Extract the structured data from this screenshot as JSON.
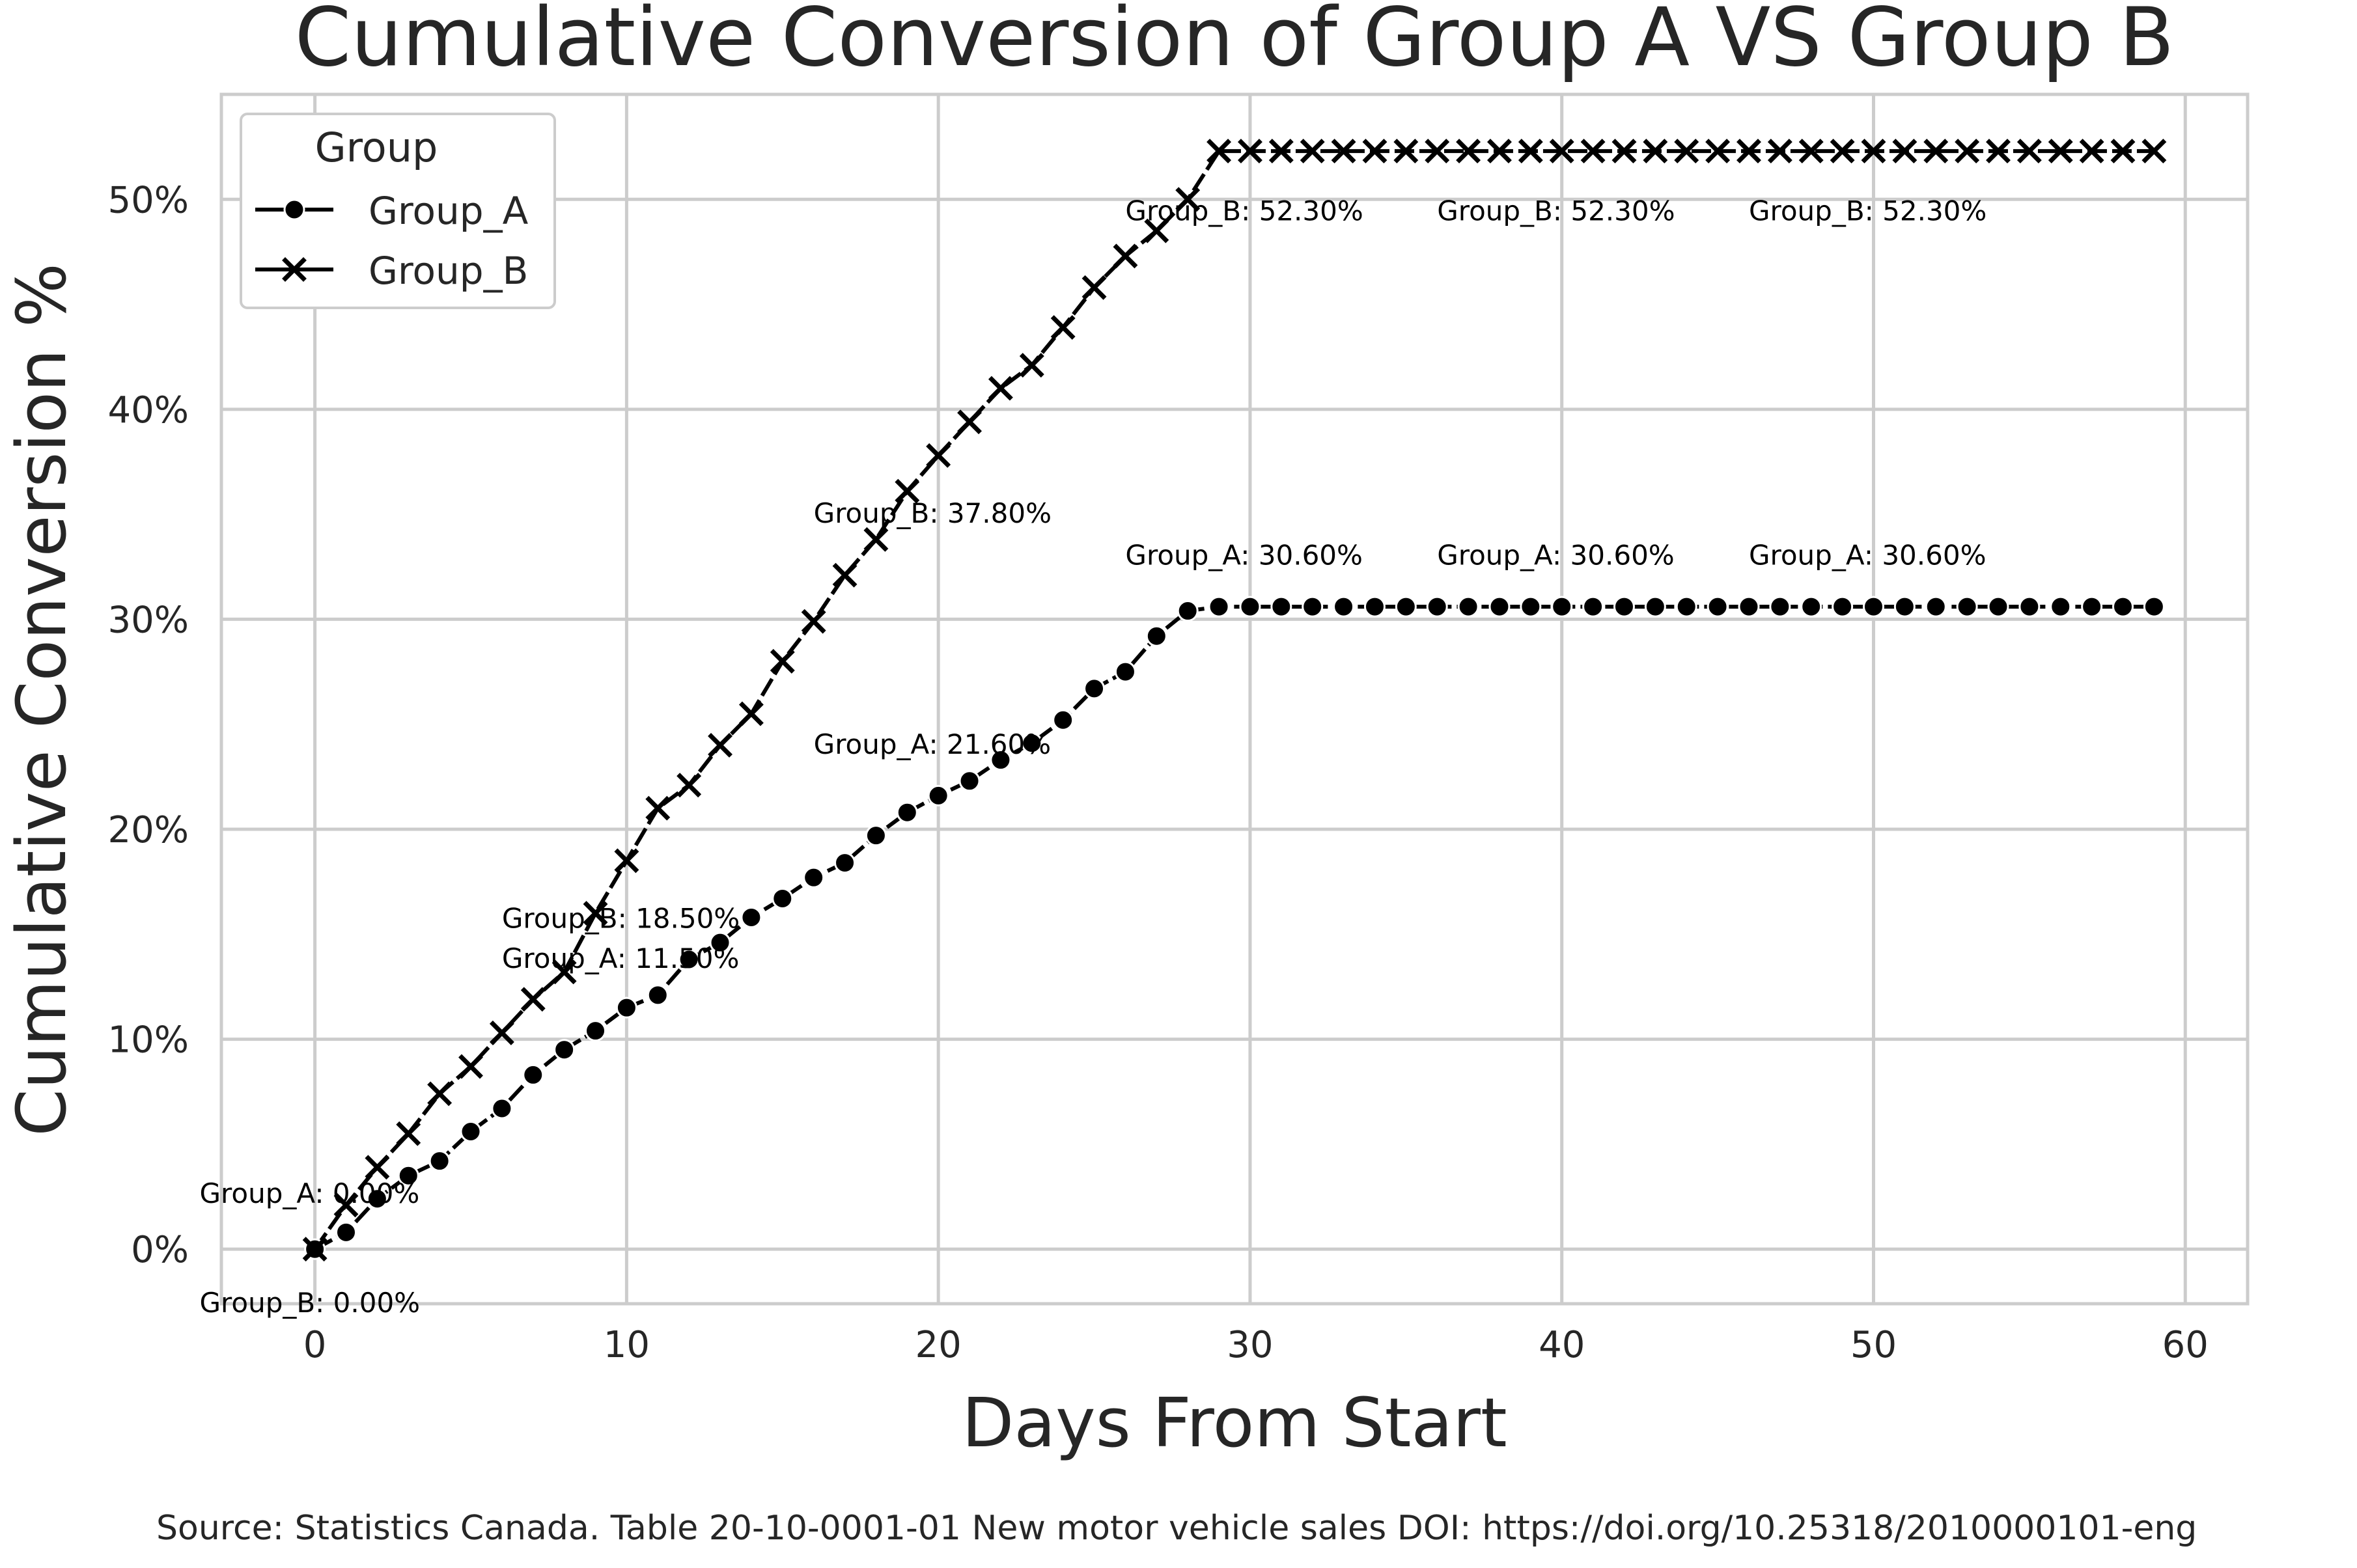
{
  "chart_data": {
    "type": "line",
    "title": "Cumulative Conversion of Group A VS Group B",
    "xlabel": "Days From Start",
    "ylabel": "Cumulative Conversion %",
    "xlim": [
      -3,
      62
    ],
    "ylim": [
      -2.6,
      55
    ],
    "xticks": [
      0,
      10,
      20,
      30,
      40,
      50,
      60
    ],
    "xtick_labels": [
      "0",
      "10",
      "20",
      "30",
      "40",
      "50",
      "60"
    ],
    "yticks": [
      0,
      10,
      20,
      30,
      40,
      50
    ],
    "ytick_labels": [
      "0%",
      "10%",
      "20%",
      "30%",
      "40%",
      "50%"
    ],
    "grid": true,
    "legend": {
      "title": "Group",
      "placement": "top-left"
    },
    "x": [
      0,
      1,
      2,
      3,
      4,
      5,
      6,
      7,
      8,
      9,
      10,
      11,
      12,
      13,
      14,
      15,
      16,
      17,
      18,
      19,
      20,
      21,
      22,
      23,
      24,
      25,
      26,
      27,
      28,
      29,
      30,
      31,
      32,
      33,
      34,
      35,
      36,
      37,
      38,
      39,
      40,
      41,
      42,
      43,
      44,
      45,
      46,
      47,
      48,
      49,
      50,
      51,
      52,
      53,
      54,
      55,
      56,
      57,
      58,
      59
    ],
    "series": [
      {
        "name": "Group_A",
        "marker": "circle",
        "color": "#000000",
        "values": [
          0.0,
          0.8,
          2.4,
          3.5,
          4.2,
          5.6,
          6.7,
          8.3,
          9.5,
          10.4,
          11.5,
          12.1,
          13.8,
          14.6,
          15.8,
          16.7,
          17.7,
          18.4,
          19.7,
          20.8,
          21.6,
          22.3,
          23.3,
          24.1,
          25.2,
          26.7,
          27.5,
          29.2,
          30.4,
          30.6,
          30.6,
          30.6,
          30.6,
          30.6,
          30.6,
          30.6,
          30.6,
          30.6,
          30.6,
          30.6,
          30.6,
          30.6,
          30.6,
          30.6,
          30.6,
          30.6,
          30.6,
          30.6,
          30.6,
          30.6,
          30.6,
          30.6,
          30.6,
          30.6,
          30.6,
          30.6,
          30.6,
          30.6,
          30.6,
          30.6
        ]
      },
      {
        "name": "Group_B",
        "marker": "x",
        "color": "#000000",
        "values": [
          0.0,
          2.1,
          3.9,
          5.5,
          7.4,
          8.7,
          10.3,
          11.9,
          13.2,
          16.0,
          18.5,
          21.0,
          22.1,
          24.0,
          25.5,
          28.0,
          29.9,
          32.1,
          33.8,
          36.1,
          37.8,
          39.4,
          41.0,
          42.1,
          43.9,
          45.8,
          47.3,
          48.5,
          50.0,
          52.3,
          52.3,
          52.3,
          52.3,
          52.3,
          52.3,
          52.3,
          52.3,
          52.3,
          52.3,
          52.3,
          52.3,
          52.3,
          52.3,
          52.3,
          52.3,
          52.3,
          52.3,
          52.3,
          52.3,
          52.3,
          52.3,
          52.3,
          52.3,
          52.3,
          52.3,
          52.3,
          52.3,
          52.3,
          52.3,
          52.3
        ]
      }
    ],
    "annotations": [
      {
        "x": -3.7,
        "y": 2.2,
        "text": "Group_A: 0.00%"
      },
      {
        "x": -3.7,
        "y": -3.0,
        "text": "Group_B: 0.00%"
      },
      {
        "x": 6,
        "y": 13.4,
        "text": "Group_A: 11.50%"
      },
      {
        "x": 6,
        "y": 15.3,
        "text": "Group_B: 18.50%"
      },
      {
        "x": 16,
        "y": 23.6,
        "text": "Group_A: 21.60%"
      },
      {
        "x": 16,
        "y": 34.6,
        "text": "Group_B: 37.80%"
      },
      {
        "x": 26,
        "y": 32.6,
        "text": "Group_A: 30.60%"
      },
      {
        "x": 36,
        "y": 32.6,
        "text": "Group_A: 30.60%"
      },
      {
        "x": 46,
        "y": 32.6,
        "text": "Group_A: 30.60%"
      },
      {
        "x": 26,
        "y": 49.0,
        "text": "Group_B: 52.30%"
      },
      {
        "x": 36,
        "y": 49.0,
        "text": "Group_B: 52.30%"
      },
      {
        "x": 46,
        "y": 49.0,
        "text": "Group_B: 52.30%"
      }
    ],
    "source": "Source: Statistics Canada. Table 20-10-0001-01  New motor vehicle sales DOI: https://doi.org/10.25318/2010000101-eng"
  }
}
